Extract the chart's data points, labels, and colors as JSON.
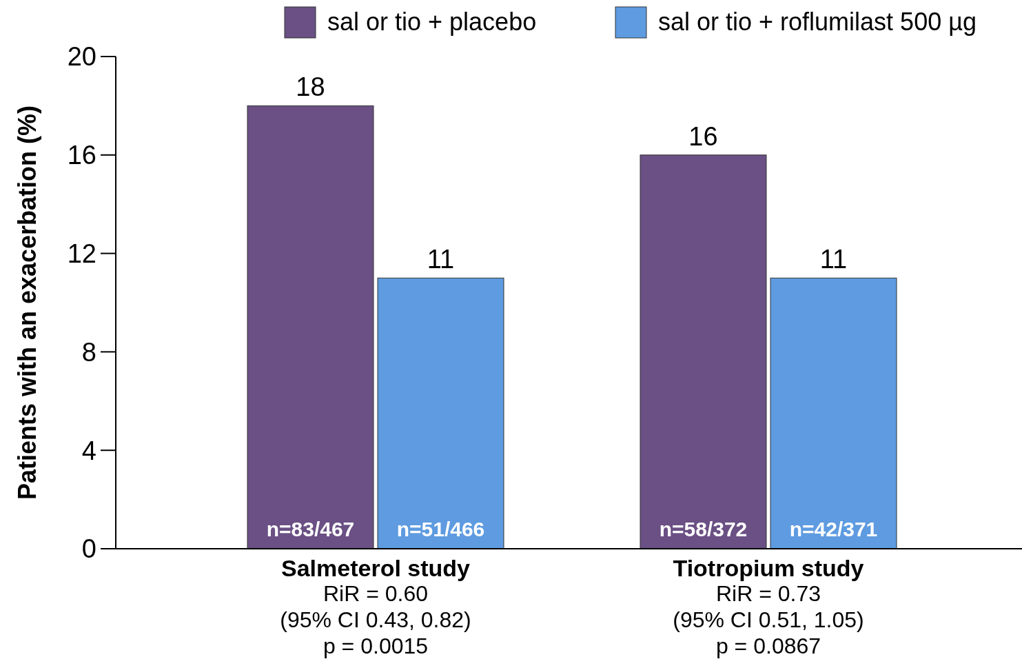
{
  "chart_data": {
    "type": "bar",
    "ylabel": "Patients with an exacerbation (%)",
    "categories": [
      "Salmeterol study",
      "Tiotropium study"
    ],
    "series": [
      {
        "name": "sal or tio + placebo",
        "color": "#6a5084",
        "values": [
          18,
          16
        ]
      },
      {
        "name": "sal or tio + roflumilast 500 µg",
        "color": "#5e9be0",
        "values": [
          11,
          11
        ]
      }
    ],
    "ylim": [
      0,
      20
    ],
    "yticks": [
      0,
      4,
      8,
      12,
      16,
      20
    ],
    "data_labels": true,
    "legend": "top",
    "grid": false,
    "annotations": [
      {
        "text": "n=83/467",
        "x": "Salmeterol study",
        "y": 0
      },
      {
        "text": "n=51/466",
        "x": "Salmeterol study",
        "y": 0
      },
      {
        "text": "n=58/372",
        "x": "Tiotropium study",
        "y": 0
      },
      {
        "text": "n=42/371",
        "x": "Tiotropium study",
        "y": 0
      },
      "RiR = 0.60\n(95% CI 0.43, 0.82)\np = 0.0015",
      "RiR = 0.73\n(95% CI 0.51, 1.05)\np = 0.0867"
    ]
  }
}
